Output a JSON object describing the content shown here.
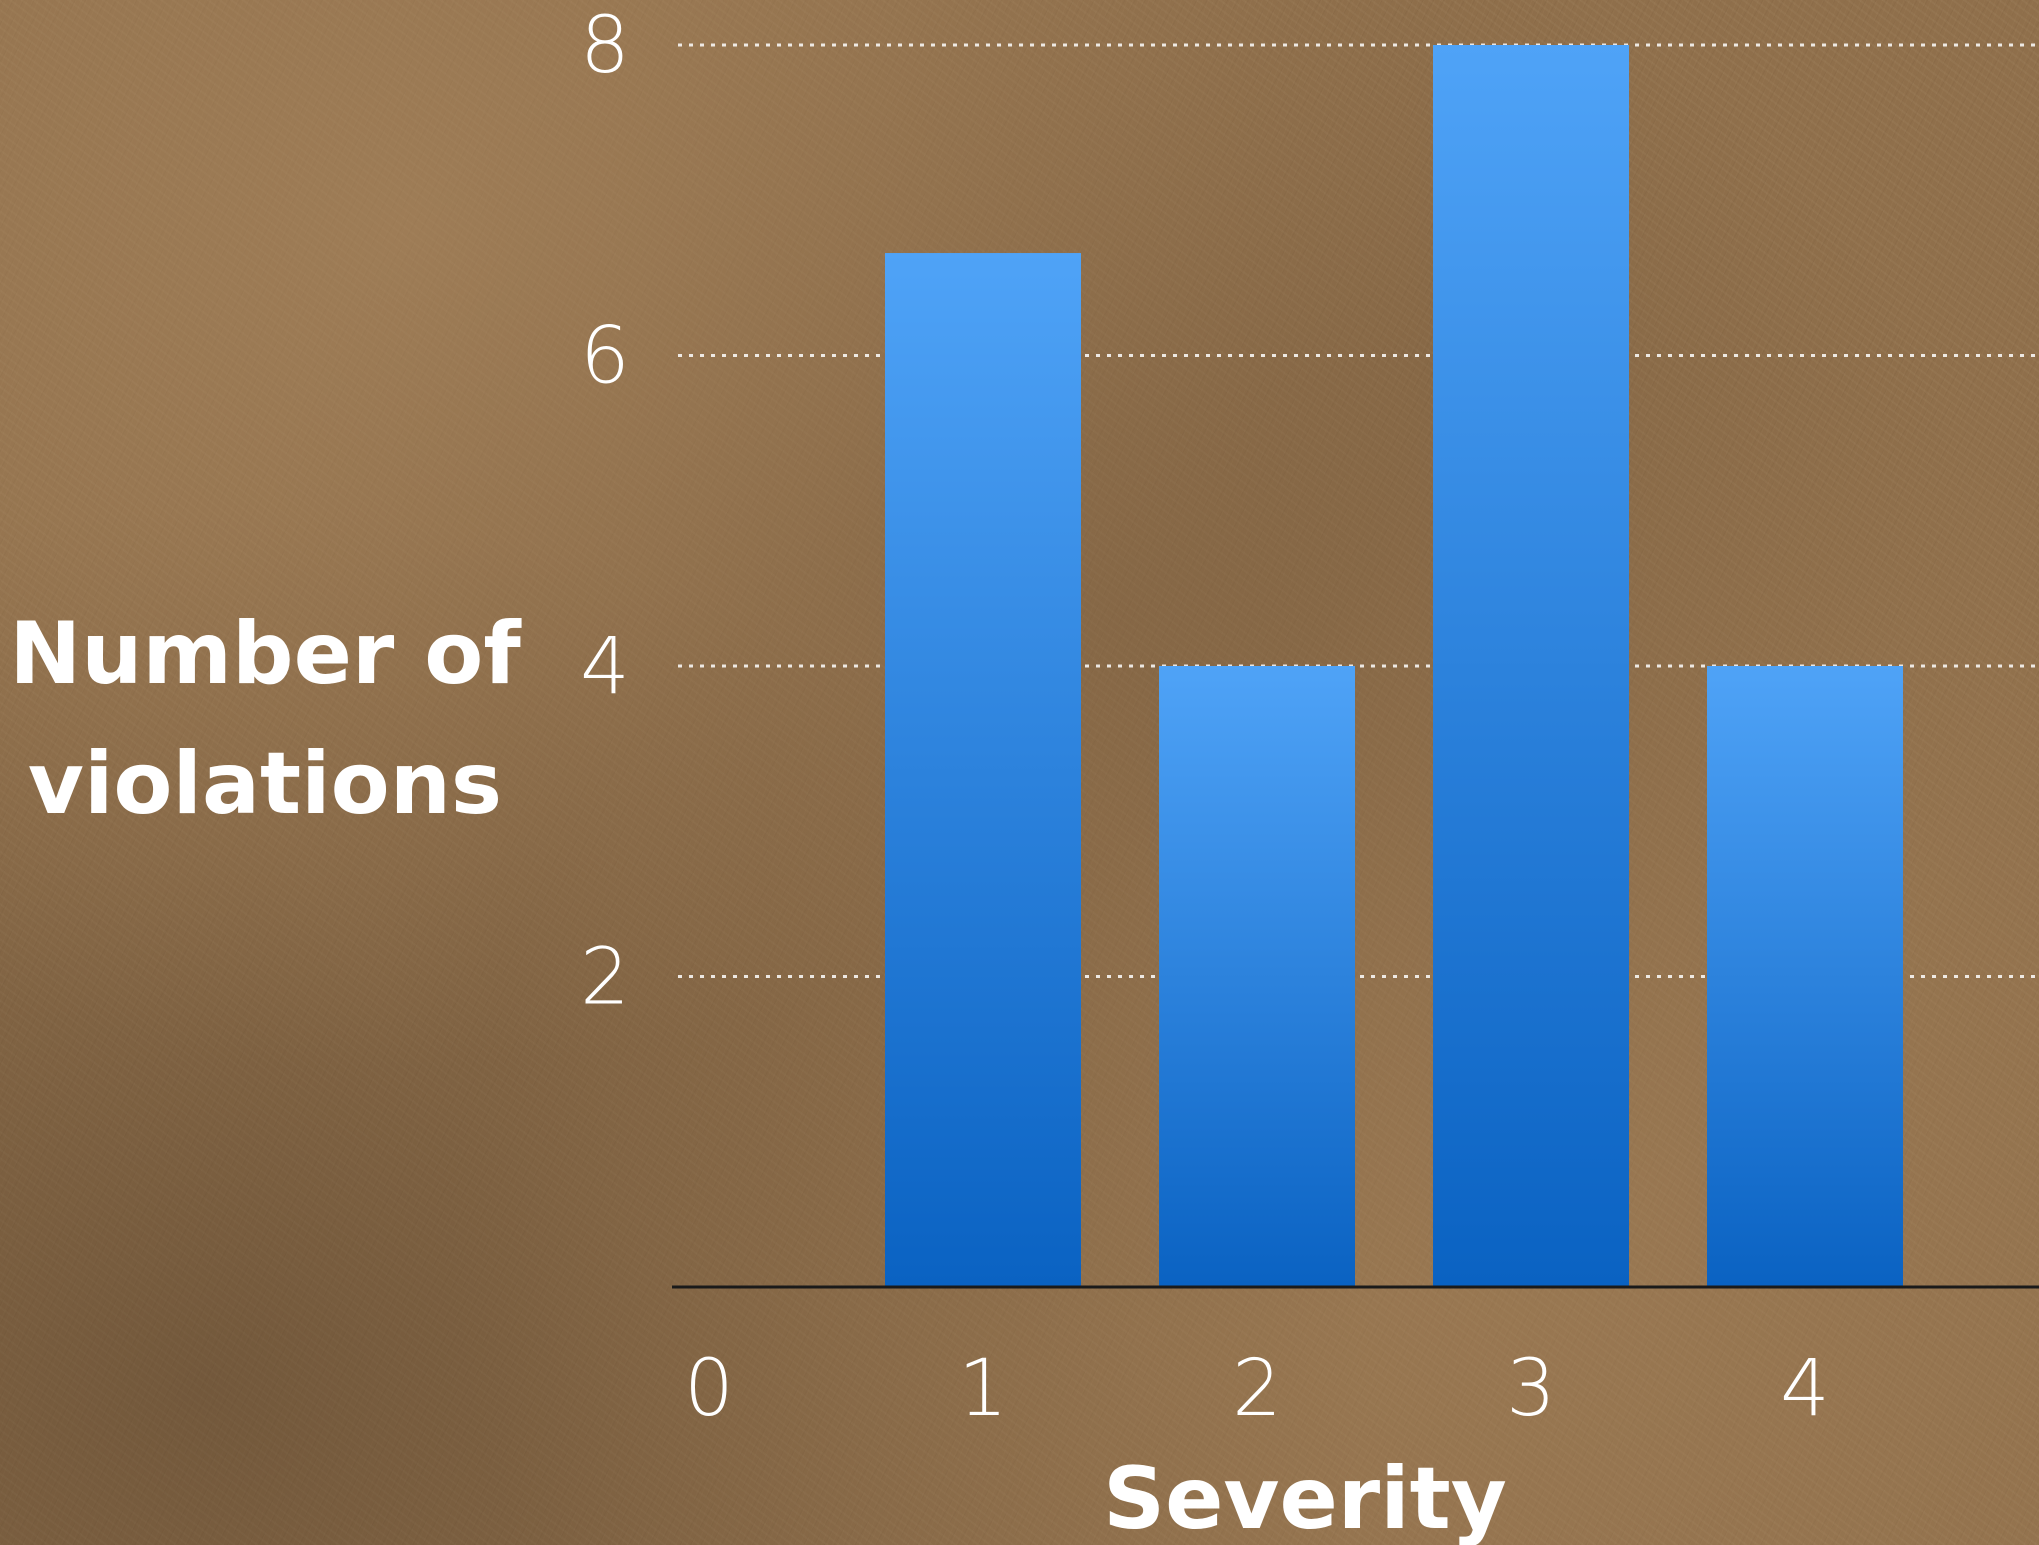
{
  "chart_data": {
    "type": "bar",
    "categories": [
      "0",
      "1",
      "2",
      "3",
      "4"
    ],
    "values": [
      0,
      6.66,
      4,
      8,
      4
    ],
    "xlabel": "Severity",
    "ylabel_line1": "Number of",
    "ylabel_line2": "violations",
    "yticks": [
      "2",
      "4",
      "6",
      "8"
    ],
    "ylim": [
      0,
      8
    ],
    "grid": true,
    "bar_color_top": "#4fa3f7",
    "bar_color_bottom": "#0a62c2"
  }
}
